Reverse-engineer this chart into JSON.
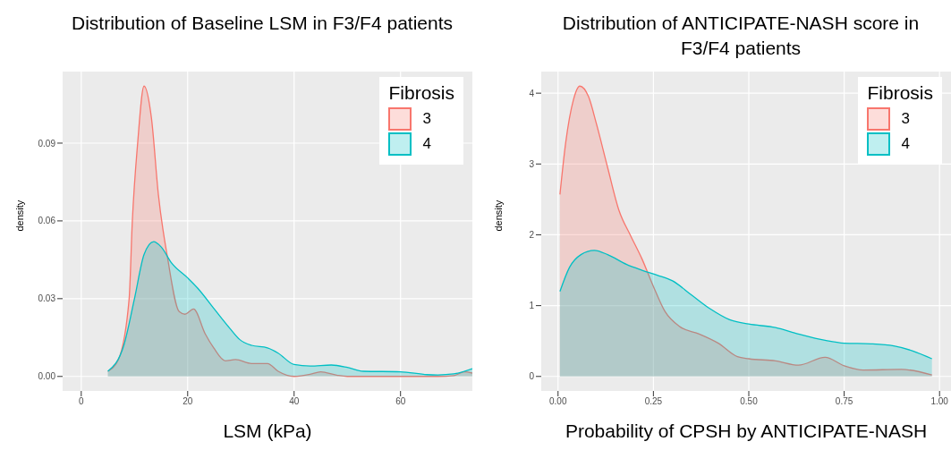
{
  "chart_data": [
    {
      "type": "area",
      "title": "Distribution of Baseline LSM in F3/F4 patients",
      "xlabel": "LSM (kPa)",
      "ylabel": "density",
      "legend_title": "Fibrosis",
      "legend": "top right",
      "grid": true,
      "xlim": [
        -3.5,
        73.5
      ],
      "xticks": [
        0,
        20,
        40,
        60
      ],
      "ylim": [
        -0.0056,
        0.1176
      ],
      "yticks": [
        {
          "value": 0,
          "label": "0.00"
        },
        {
          "value": 0.03,
          "label": "0.03"
        },
        {
          "value": 0.06,
          "label": "0.06"
        },
        {
          "value": 0.09,
          "label": "0.09"
        }
      ],
      "series": [
        {
          "name": "3",
          "color": "#f8766d",
          "x": [
            5,
            7,
            9,
            9.6,
            10.6,
            11.8,
            13.2,
            14.5,
            16.2,
            18.4,
            19.5,
            21.1,
            23.3,
            24.9,
            27.1,
            29,
            32,
            35,
            37,
            40,
            43,
            45,
            48,
            50,
            60,
            67,
            70,
            72,
            73.5
          ],
          "values": [
            0.002,
            0.0066,
            0.03,
            0.06,
            0.09,
            0.112,
            0.0995,
            0.07,
            0.046,
            0.025,
            0.024,
            0.026,
            0.0164,
            0.011,
            0.006,
            0.0065,
            0.005,
            0.005,
            0.002,
            0,
            0.0008,
            0.0018,
            0.0005,
            0,
            0,
            0,
            0.0003,
            0.0018,
            0.0013
          ]
        },
        {
          "name": "4",
          "color": "#00bfc4",
          "x": [
            5,
            8,
            10,
            11.8,
            13.6,
            15,
            17,
            20,
            21.9,
            25,
            27.9,
            29.8,
            32,
            35,
            37,
            40,
            43,
            47,
            50,
            53,
            60,
            65,
            67,
            70,
            73.5
          ],
          "values": [
            0.002,
            0.012,
            0.03,
            0.047,
            0.052,
            0.05,
            0.0437,
            0.038,
            0.034,
            0.026,
            0.0186,
            0.0142,
            0.012,
            0.011,
            0.009,
            0.0046,
            0.004,
            0.0044,
            0.0035,
            0.002,
            0.0018,
            0.0007,
            0.0006,
            0.001,
            0.003
          ]
        }
      ]
    },
    {
      "type": "area",
      "title": "Distribution of ANTICIPATE-NASH score in F3/F4 patients",
      "xlabel": "Probability of CPSH by ANTICIPATE-NASH",
      "ylabel": "density",
      "legend_title": "Fibrosis",
      "legend": "top right",
      "grid": true,
      "xlim": [
        -0.044,
        1.03
      ],
      "xticks": [
        {
          "value": 0,
          "label": "0.00"
        },
        {
          "value": 0.25,
          "label": "0.25"
        },
        {
          "value": 0.5,
          "label": "0.50"
        },
        {
          "value": 0.75,
          "label": "0.75"
        },
        {
          "value": 1,
          "label": "1.00"
        }
      ],
      "ylim": [
        -0.205,
        4.305
      ],
      "yticks": [
        0,
        1,
        2,
        3,
        4
      ],
      "series": [
        {
          "name": "3",
          "color": "#f8766d",
          "x": [
            0.005,
            0.02,
            0.04,
            0.057,
            0.08,
            0.1,
            0.13,
            0.16,
            0.19,
            0.22,
            0.25,
            0.28,
            0.32,
            0.37,
            0.42,
            0.47,
            0.5,
            0.57,
            0.63,
            0.7,
            0.75,
            0.8,
            0.9,
            0.98
          ],
          "values": [
            2.57,
            3.3,
            3.9,
            4.1,
            3.95,
            3.58,
            2.95,
            2.34,
            1.99,
            1.66,
            1.27,
            0.92,
            0.7,
            0.6,
            0.47,
            0.28,
            0.25,
            0.22,
            0.16,
            0.27,
            0.15,
            0.09,
            0.1,
            0.02
          ]
        },
        {
          "name": "4",
          "color": "#00bfc4",
          "x": [
            0.005,
            0.03,
            0.06,
            0.095,
            0.13,
            0.18,
            0.22,
            0.26,
            0.3,
            0.35,
            0.4,
            0.45,
            0.5,
            0.57,
            0.63,
            0.7,
            0.75,
            0.82,
            0.88,
            0.93,
            0.98
          ],
          "values": [
            1.2,
            1.54,
            1.72,
            1.78,
            1.72,
            1.58,
            1.5,
            1.43,
            1.35,
            1.15,
            0.95,
            0.8,
            0.74,
            0.69,
            0.6,
            0.51,
            0.47,
            0.46,
            0.43,
            0.36,
            0.25
          ]
        }
      ]
    }
  ]
}
